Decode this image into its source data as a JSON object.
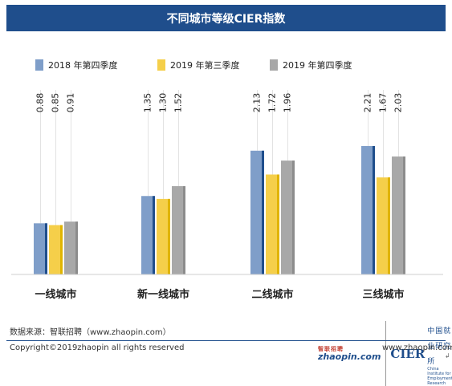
{
  "header": {
    "title": "不同城市等级CIER指数"
  },
  "chart_data": {
    "type": "bar",
    "title": "不同城市等级CIER指数",
    "categories": [
      "一线城市",
      "新一线城市",
      "二线城市",
      "三线城市"
    ],
    "series": [
      {
        "name": "2018 年第四季度",
        "color": "#7f9ec9",
        "accent": "#1f4e8c",
        "values": [
          0.88,
          1.35,
          2.13,
          2.21
        ]
      },
      {
        "name": "2019 年第三季度",
        "color": "#f5cf4a",
        "accent": "#e0b400",
        "values": [
          0.85,
          1.3,
          1.72,
          1.67
        ]
      },
      {
        "name": "2019 年第四季度",
        "color": "#a8a8a8",
        "accent": "#8c8c8c",
        "values": [
          0.91,
          1.52,
          1.96,
          2.03
        ]
      }
    ],
    "ylim": [
      0,
      2.5
    ],
    "grid": false,
    "legend": "top-left",
    "data_labels": "vertical above bars"
  },
  "footer": {
    "source": "数据来源：智联招聘（www.zhaopin.com）",
    "copyright": "Copyright©2019zhaopin all rights reserved",
    "website": "www.zhaopin.com",
    "corner_mark": "↲"
  },
  "logos": {
    "zhaopin_cn": "智联招聘",
    "zhaopin_en": "zhaopin.com",
    "cier": "CIER",
    "cier_cn": "中国就业研究所",
    "cier_en": "China Institute for Employment Research"
  }
}
